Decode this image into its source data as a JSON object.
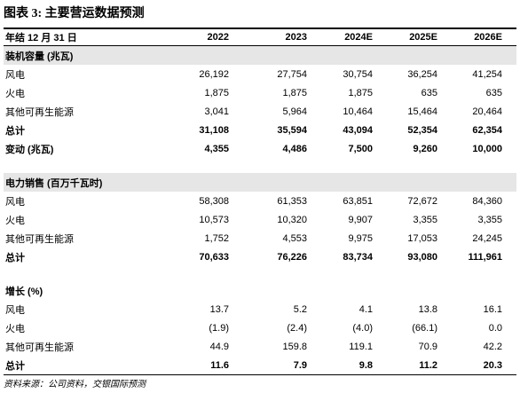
{
  "header": {
    "title": "图表 3: 主要营运数据预测"
  },
  "table": {
    "columns": [
      "年结 12 月 31 日",
      "2022",
      "2023",
      "2024E",
      "2025E",
      "2026E"
    ],
    "sections": [
      {
        "title": "装机容量 (兆瓦)",
        "rows": [
          [
            "风电",
            "26,192",
            "27,754",
            "30,754",
            "36,254",
            "41,254"
          ],
          [
            "火电",
            "1,875",
            "1,875",
            "1,875",
            "635",
            "635"
          ],
          [
            "其他可再生能源",
            "3,041",
            "5,964",
            "10,464",
            "15,464",
            "20,464"
          ],
          [
            "总计",
            "31,108",
            "35,594",
            "43,094",
            "52,354",
            "62,354"
          ],
          [
            "变动 (兆瓦)",
            "4,355",
            "4,486",
            "7,500",
            "9,260",
            "10,000"
          ]
        ]
      },
      {
        "title": "电力销售 (百万千瓦时)",
        "rows": [
          [
            "风电",
            "58,308",
            "61,353",
            "63,851",
            "72,672",
            "84,360"
          ],
          [
            "火电",
            "10,573",
            "10,320",
            "9,907",
            "3,355",
            "3,355"
          ],
          [
            "其他可再生能源",
            "1,752",
            "4,553",
            "9,975",
            "17,053",
            "24,245"
          ],
          [
            "总计",
            "70,633",
            "76,226",
            "83,734",
            "93,080",
            "111,961"
          ]
        ]
      },
      {
        "title": "增长 (%)",
        "rows": [
          [
            "风电",
            "13.7",
            "5.2",
            "4.1",
            "13.8",
            "16.1"
          ],
          [
            "火电",
            "(1.9)",
            "(2.4)",
            "(4.0)",
            "(66.1)",
            "0.0"
          ],
          [
            "其他可再生能源",
            "44.9",
            "159.8",
            "119.1",
            "70.9",
            "42.2"
          ],
          [
            "总计",
            "11.6",
            "7.9",
            "9.8",
            "11.2",
            "20.3"
          ]
        ]
      }
    ]
  },
  "footer": {
    "source": "资料来源：公司资料，交银国际预测"
  }
}
